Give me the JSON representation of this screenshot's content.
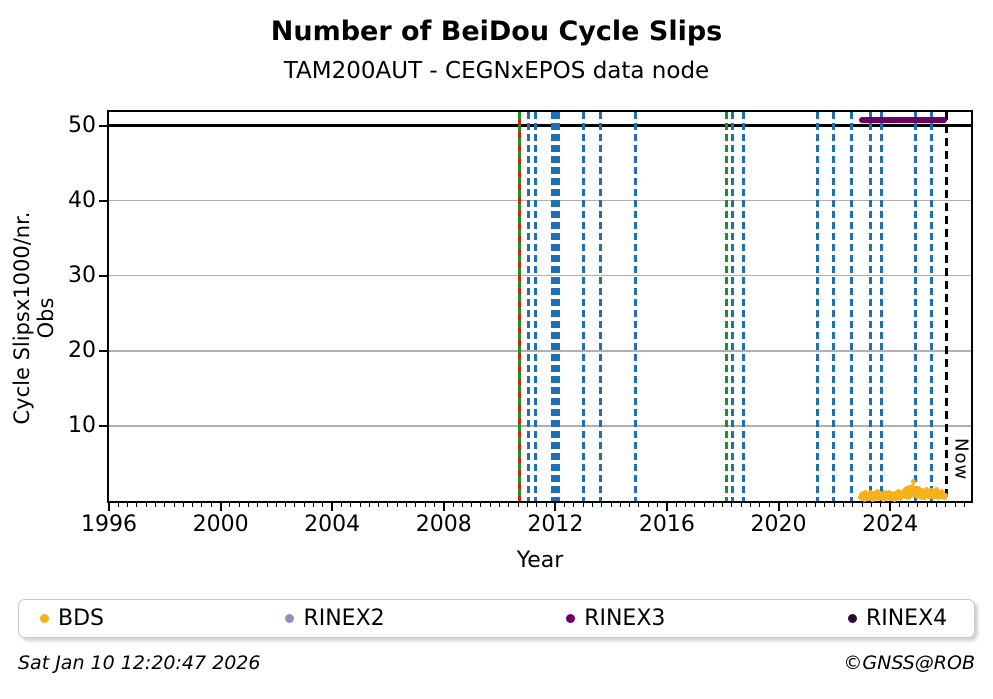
{
  "chart_data": {
    "type": "scatter",
    "title": "Number of BeiDou Cycle Slips",
    "subtitle": "TAM200AUT - CEGNxEPOS data node",
    "xlabel": "Year",
    "ylabel": "Cycle Slipsx1000/nr. Obs",
    "xlim": [
      1996,
      2026.9
    ],
    "ylim": [
      0,
      51.8
    ],
    "x_major_ticks": [
      1996,
      2000,
      2004,
      2008,
      2012,
      2016,
      2020,
      2024
    ],
    "x_minor_step": 0.3333,
    "y_major_ticks": [
      10,
      20,
      30,
      40,
      50
    ],
    "grid": "horizontal-only",
    "hline_value": 50,
    "legend_position": "bottom-expanded",
    "series": [
      {
        "name": "BDS",
        "type": "scatter",
        "color": "#f6b21b",
        "points": [
          [
            2022.95,
            0.4
          ],
          [
            2022.98,
            0.8
          ],
          [
            2023.01,
            0.3
          ],
          [
            2023.04,
            1.0
          ],
          [
            2023.07,
            0.6
          ],
          [
            2023.1,
            0.2
          ],
          [
            2023.13,
            1.1
          ],
          [
            2023.16,
            0.5
          ],
          [
            2023.19,
            0.9
          ],
          [
            2023.22,
            0.35
          ],
          [
            2023.25,
            0.7
          ],
          [
            2023.28,
            1.15
          ],
          [
            2023.31,
            0.45
          ],
          [
            2023.34,
            0.85
          ],
          [
            2023.37,
            0.25
          ],
          [
            2023.4,
            1.05
          ],
          [
            2023.43,
            0.6
          ],
          [
            2023.46,
            0.95
          ],
          [
            2023.49,
            0.4
          ],
          [
            2023.52,
            0.75
          ],
          [
            2023.55,
            1.2
          ],
          [
            2023.58,
            0.3
          ],
          [
            2023.61,
            0.9
          ],
          [
            2023.64,
            0.55
          ],
          [
            2023.67,
            1.0
          ],
          [
            2023.7,
            0.45
          ],
          [
            2023.73,
            0.8
          ],
          [
            2023.76,
            0.2
          ],
          [
            2023.79,
            1.1
          ],
          [
            2023.82,
            0.65
          ],
          [
            2023.85,
            0.35
          ],
          [
            2023.88,
            0.95
          ],
          [
            2023.91,
            0.5
          ],
          [
            2023.94,
            1.15
          ],
          [
            2023.97,
            0.7
          ],
          [
            2024.0,
            0.3
          ],
          [
            2024.03,
            0.85
          ],
          [
            2024.06,
            1.05
          ],
          [
            2024.09,
            0.4
          ],
          [
            2024.12,
            0.75
          ],
          [
            2024.15,
            0.25
          ],
          [
            2024.18,
            1.0
          ],
          [
            2024.21,
            0.6
          ],
          [
            2024.24,
            0.9
          ],
          [
            2024.27,
            0.45
          ],
          [
            2024.3,
            1.2
          ],
          [
            2024.33,
            0.7
          ],
          [
            2024.36,
            0.35
          ],
          [
            2024.39,
            0.95
          ],
          [
            2024.42,
            0.55
          ],
          [
            2024.45,
            1.1
          ],
          [
            2024.48,
            0.8
          ],
          [
            2024.51,
            1.4
          ],
          [
            2024.54,
            0.6
          ],
          [
            2024.57,
            1.65
          ],
          [
            2024.6,
            0.9
          ],
          [
            2024.63,
            1.3
          ],
          [
            2024.66,
            0.5
          ],
          [
            2024.69,
            1.75
          ],
          [
            2024.72,
            1.1
          ],
          [
            2024.75,
            1.5
          ],
          [
            2024.78,
            0.7
          ],
          [
            2024.81,
            1.9
          ],
          [
            2024.84,
            1.2
          ],
          [
            2024.85,
            2.6
          ],
          [
            2024.87,
            0.85
          ],
          [
            2024.9,
            1.6
          ],
          [
            2024.93,
            1.0
          ],
          [
            2024.96,
            1.35
          ],
          [
            2024.99,
            0.6
          ],
          [
            2025.02,
            1.7
          ],
          [
            2025.05,
            0.95
          ],
          [
            2025.08,
            1.25
          ],
          [
            2025.11,
            0.5
          ],
          [
            2025.14,
            1.45
          ],
          [
            2025.17,
            0.8
          ],
          [
            2025.2,
            1.1
          ],
          [
            2025.23,
            0.4
          ],
          [
            2025.26,
            1.3
          ],
          [
            2025.29,
            0.75
          ],
          [
            2025.32,
            1.55
          ],
          [
            2025.35,
            0.95
          ],
          [
            2025.38,
            0.55
          ],
          [
            2025.41,
            1.2
          ],
          [
            2025.44,
            0.85
          ],
          [
            2025.47,
            1.4
          ],
          [
            2025.5,
            0.65
          ],
          [
            2025.53,
            1.05
          ],
          [
            2025.56,
            0.45
          ],
          [
            2025.59,
            1.25
          ],
          [
            2025.62,
            0.9
          ],
          [
            2025.65,
            1.5
          ],
          [
            2025.68,
            0.7
          ],
          [
            2025.71,
            1.15
          ],
          [
            2025.74,
            0.5
          ],
          [
            2025.77,
            1.0
          ],
          [
            2025.8,
            0.8
          ],
          [
            2025.83,
            1.3
          ],
          [
            2025.86,
            0.6
          ],
          [
            2025.89,
            1.1
          ],
          [
            2025.92,
            0.9
          ],
          [
            2025.95,
            0.5
          ],
          [
            2025.98,
            0.75
          ]
        ]
      },
      {
        "name": "RINEX2",
        "type": "scatter",
        "color": "#8d8dc8",
        "points": []
      },
      {
        "name": "RINEX3",
        "type": "line",
        "color": "#6e0064",
        "points": [
          [
            2022.9,
            50.8
          ],
          [
            2026.03,
            50.8
          ]
        ]
      },
      {
        "name": "RINEX4",
        "type": "scatter",
        "color": "#2d0a33",
        "points": []
      }
    ],
    "event_lines": [
      {
        "year": 2010.72,
        "type": "green-red"
      },
      {
        "year": 2011.05,
        "type": "blue"
      },
      {
        "year": 2011.3,
        "type": "blue"
      },
      {
        "year": 2011.9,
        "type": "blue"
      },
      {
        "year": 2012.0,
        "type": "blue"
      },
      {
        "year": 2012.1,
        "type": "blue"
      },
      {
        "year": 2013.0,
        "type": "blue"
      },
      {
        "year": 2013.63,
        "type": "blue"
      },
      {
        "year": 2014.87,
        "type": "blue"
      },
      {
        "year": 2018.15,
        "type": "green"
      },
      {
        "year": 2018.35,
        "type": "blue"
      },
      {
        "year": 2018.74,
        "type": "blue"
      },
      {
        "year": 2021.41,
        "type": "blue"
      },
      {
        "year": 2021.96,
        "type": "blue"
      },
      {
        "year": 2022.63,
        "type": "blue"
      },
      {
        "year": 2023.28,
        "type": "blue"
      },
      {
        "year": 2023.69,
        "type": "blue"
      },
      {
        "year": 2024.9,
        "type": "blue"
      },
      {
        "year": 2025.47,
        "type": "blue"
      }
    ],
    "now_marker": {
      "year": 2026.03,
      "label": "Now"
    }
  },
  "colors": {
    "blue_event": "#1f6fb4",
    "green_event": "#1c931c",
    "red_event": "#d02020",
    "grid": "#b0b0b0",
    "hline": "#000000",
    "now_line": "#000000"
  },
  "legend": {
    "items": [
      {
        "label": "BDS",
        "color": "#f6b21b"
      },
      {
        "label": "RINEX2",
        "color": "#8d8dc8"
      },
      {
        "label": "RINEX3",
        "color": "#6e0064"
      },
      {
        "label": "RINEX4",
        "color": "#2d0a33"
      }
    ]
  },
  "footer": {
    "timestamp": "Sat Jan 10 12:20:47 2026",
    "credit": "©GNSS@ROB"
  }
}
